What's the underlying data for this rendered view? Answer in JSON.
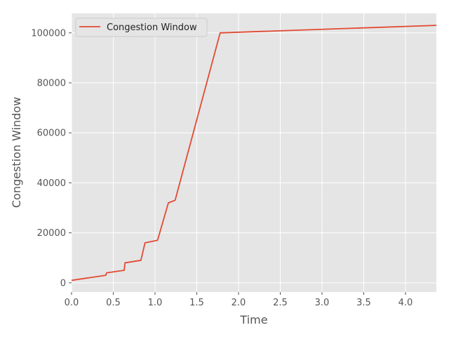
{
  "chart_data": {
    "type": "line",
    "title": "",
    "xlabel": "Time",
    "ylabel": "Congestion Window",
    "xlim": [
      0.0,
      4.37
    ],
    "ylim": [
      -3700,
      107800
    ],
    "x_ticks": [
      0.0,
      0.5,
      1.0,
      1.5,
      2.0,
      2.5,
      3.0,
      3.5,
      4.0
    ],
    "x_tick_labels": [
      "0.0",
      "0.5",
      "1.0",
      "1.5",
      "2.0",
      "2.5",
      "3.0",
      "3.5",
      "4.0"
    ],
    "y_ticks": [
      0,
      20000,
      40000,
      60000,
      80000,
      100000
    ],
    "y_tick_labels": [
      "0",
      "20000",
      "40000",
      "60000",
      "80000",
      "100000"
    ],
    "grid": true,
    "legend": "upper-left",
    "series": [
      {
        "name": "Congestion Window",
        "color": "#e24a33",
        "x": [
          0.0,
          0.41,
          0.42,
          0.63,
          0.64,
          0.83,
          0.88,
          1.03,
          1.16,
          1.24,
          1.78,
          4.37
        ],
        "y": [
          1000,
          3000,
          4000,
          5000,
          8000,
          9000,
          16000,
          17000,
          32000,
          33000,
          100000,
          103000
        ]
      }
    ]
  }
}
